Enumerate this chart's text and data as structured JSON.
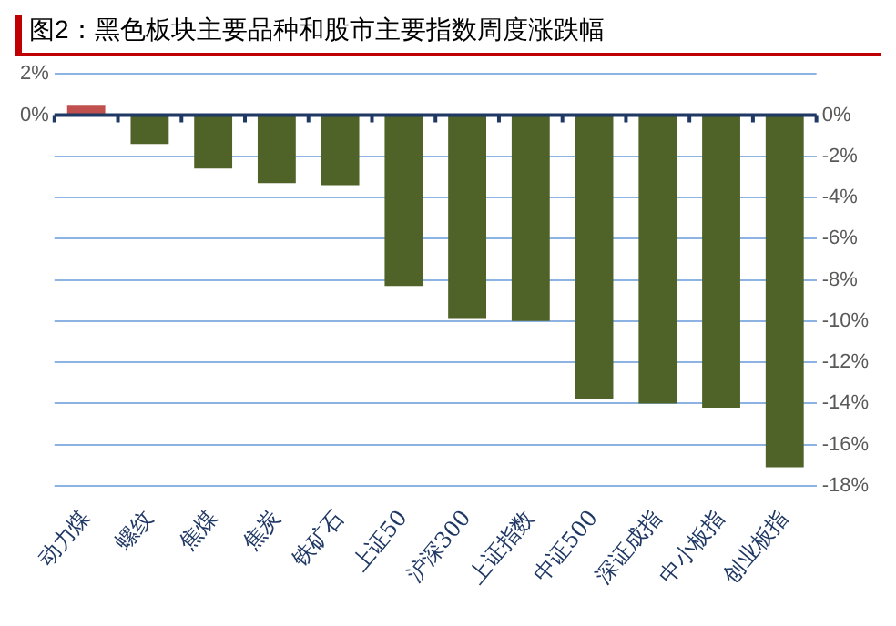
{
  "chart_data": {
    "type": "bar",
    "title": "图2：黑色板块主要品种和股市主要指数周度涨跌幅",
    "categories": [
      "动力煤",
      "螺纹",
      "焦煤",
      "焦炭",
      "铁矿石",
      "上证50",
      "沪深300",
      "上证指数",
      "中证500",
      "深证成指",
      "中小板指",
      "创业板指"
    ],
    "values": [
      0.5,
      -1.4,
      -2.6,
      -3.3,
      -3.4,
      -8.3,
      -9.9,
      -10.0,
      -13.8,
      -14.0,
      -14.2,
      -17.1
    ],
    "colors": [
      "#c0504d",
      "#4f6228",
      "#4f6228",
      "#4f6228",
      "#4f6228",
      "#4f6228",
      "#4f6228",
      "#4f6228",
      "#4f6228",
      "#4f6228",
      "#4f6228",
      "#4f6228"
    ],
    "ylim": [
      -18,
      2
    ],
    "yticks": [
      {
        "value": 2,
        "label": "2%"
      },
      {
        "value": 0,
        "label": "0%"
      }
    ],
    "y2lim": [
      -18,
      2
    ],
    "y2ticks": [
      {
        "value": 0,
        "label": "0%"
      },
      {
        "value": -2,
        "label": "-2%"
      },
      {
        "value": -4,
        "label": "-4%"
      },
      {
        "value": -6,
        "label": "-6%"
      },
      {
        "value": -8,
        "label": "-8%"
      },
      {
        "value": -10,
        "label": "-10%"
      },
      {
        "value": -12,
        "label": "-12%"
      },
      {
        "value": -14,
        "label": "-14%"
      },
      {
        "value": -16,
        "label": "-16%"
      },
      {
        "value": -18,
        "label": "-18%"
      }
    ],
    "ref_lines": [
      {
        "axis": "y",
        "value": 0,
        "color": "#1f3864"
      }
    ],
    "grid": "y",
    "legend": false
  }
}
